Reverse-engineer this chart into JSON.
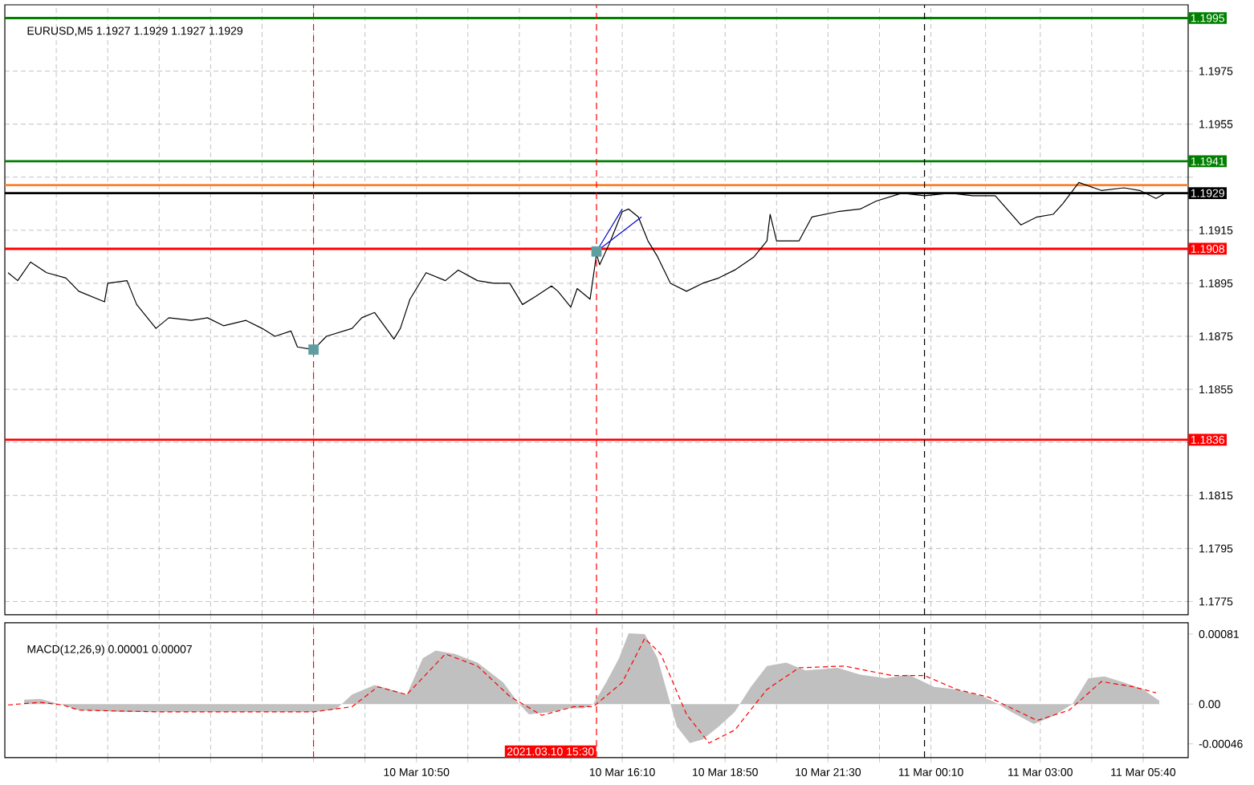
{
  "chart_data": [
    {
      "type": "line",
      "title": "EURUSD,M5  1.1927 1.1929 1.1927 1.1929",
      "series": [
        {
          "color": "#000000",
          "x": [
            "2021-03-10T00:15",
            "2021-03-10T00:30",
            "2021-03-10T00:50",
            "2021-03-10T01:15",
            "2021-03-10T01:45",
            "2021-03-10T02:05",
            "2021-03-10T02:45",
            "2021-03-10T02:50",
            "2021-03-10T03:20",
            "2021-03-10T03:35",
            "2021-03-10T04:05",
            "2021-03-10T04:25",
            "2021-03-10T05:00",
            "2021-03-10T05:25",
            "2021-03-10T05:50",
            "2021-03-10T06:25",
            "2021-03-10T06:50",
            "2021-03-10T07:10",
            "2021-03-10T07:35",
            "2021-03-10T07:45",
            "2021-03-10T08:10",
            "2021-03-10T08:30",
            "2021-03-10T09:10",
            "2021-03-10T09:25",
            "2021-03-10T09:45",
            "2021-03-10T10:00",
            "2021-03-10T10:15",
            "2021-03-10T10:25",
            "2021-03-10T10:40",
            "2021-03-10T11:05",
            "2021-03-10T11:35",
            "2021-03-10T11:55",
            "2021-03-10T12:25",
            "2021-03-10T12:50",
            "2021-03-10T13:15",
            "2021-03-10T13:35",
            "2021-03-10T13:55",
            "2021-03-10T14:20",
            "2021-03-10T14:30",
            "2021-03-10T14:50",
            "2021-03-10T15:00",
            "2021-03-10T15:20",
            "2021-03-10T15:30",
            "2021-03-10T15:35",
            "2021-03-10T15:50",
            "2021-03-10T16:10",
            "2021-03-10T16:20",
            "2021-03-10T16:35",
            "2021-03-10T16:50",
            "2021-03-10T17:05",
            "2021-03-10T17:25",
            "2021-03-10T17:50",
            "2021-03-10T18:15",
            "2021-03-10T18:40",
            "2021-03-10T19:05",
            "2021-03-10T19:35",
            "2021-03-10T19:55",
            "2021-03-10T20:00",
            "2021-03-10T20:10",
            "2021-03-10T20:45",
            "2021-03-10T21:05",
            "2021-03-10T21:45",
            "2021-03-10T22:20",
            "2021-03-10T22:45",
            "2021-03-10T23:25",
            "2021-03-11T00:00",
            "2021-03-11T00:40",
            "2021-03-11T01:15",
            "2021-03-11T01:50",
            "2021-03-11T02:30",
            "2021-03-11T02:55",
            "2021-03-11T03:20",
            "2021-03-11T03:35",
            "2021-03-11T04:00",
            "2021-03-11T04:35",
            "2021-03-11T05:10",
            "2021-03-11T05:35",
            "2021-03-11T06:00",
            "2021-03-11T06:15"
          ],
          "values": [
            1.1899,
            1.1896,
            1.1903,
            1.1899,
            1.1897,
            1.1892,
            1.1888,
            1.1895,
            1.1896,
            1.1887,
            1.1878,
            1.1882,
            1.1881,
            1.1882,
            1.1879,
            1.1881,
            1.1878,
            1.1875,
            1.1877,
            1.1871,
            1.187,
            1.1875,
            1.1878,
            1.1882,
            1.1884,
            1.1879,
            1.1874,
            1.1878,
            1.1889,
            1.1899,
            1.1896,
            1.19,
            1.1896,
            1.1895,
            1.1895,
            1.1887,
            1.189,
            1.1894,
            1.1892,
            1.1886,
            1.1893,
            1.1889,
            1.1906,
            1.1902,
            1.191,
            1.1922,
            1.1923,
            1.192,
            1.1911,
            1.1905,
            1.1895,
            1.1892,
            1.1895,
            1.1897,
            1.19,
            1.1905,
            1.1911,
            1.1921,
            1.1911,
            1.1911,
            1.192,
            1.1922,
            1.1923,
            1.1926,
            1.1929,
            1.1928,
            1.1929,
            1.1928,
            1.1928,
            1.1917,
            1.192,
            1.1921,
            1.1925,
            1.1933,
            1.193,
            1.1931,
            1.193,
            1.1927,
            1.1929
          ]
        },
        {
          "type": "scatter",
          "marker": "square",
          "color": "#5f9ea0",
          "x": [
            "2021-03-10T08:10",
            "2021-03-10T15:30"
          ],
          "values": [
            1.187,
            1.1907
          ]
        },
        {
          "color": "#0000cc",
          "x": [
            "2021-03-10T15:30",
            "2021-03-10T16:10"
          ],
          "values": [
            1.1907,
            1.1923
          ]
        },
        {
          "color": "#0000cc",
          "x": [
            "2021-03-10T15:30",
            "2021-03-10T16:40"
          ],
          "values": [
            1.1907,
            1.192
          ]
        }
      ],
      "xlim": [
        "2021-03-10T00:10",
        "2021-03-11T06:50"
      ],
      "ylim": [
        1.177,
        1.2
      ],
      "xticks": [
        {
          "value": "2021-03-10T01:30",
          "label": null
        },
        {
          "value": "2021-03-10T02:50",
          "label": null
        },
        {
          "value": "2021-03-10T04:10",
          "label": null
        },
        {
          "value": "2021-03-10T05:30",
          "label": null
        },
        {
          "value": "2021-03-10T06:50",
          "label": null
        },
        {
          "value": "2021-03-10T08:10",
          "label": null
        },
        {
          "value": "2021-03-10T09:30",
          "label": null
        },
        {
          "value": "2021-03-10T10:50",
          "label": null
        },
        {
          "value": "2021-03-10T12:10",
          "label": null
        },
        {
          "value": "2021-03-10T13:30",
          "label": null
        },
        {
          "value": "2021-03-10T14:50",
          "label": null
        },
        {
          "value": "2021-03-10T16:10",
          "label": null
        },
        {
          "value": "2021-03-10T17:30",
          "label": null
        },
        {
          "value": "2021-03-10T18:50",
          "label": null
        },
        {
          "value": "2021-03-10T20:10",
          "label": null
        },
        {
          "value": "2021-03-10T21:30",
          "label": null
        },
        {
          "value": "2021-03-10T22:50",
          "label": null
        },
        {
          "value": "2021-03-11T00:10",
          "label": null
        },
        {
          "value": "2021-03-11T01:35",
          "label": null
        },
        {
          "value": "2021-03-11T03:00",
          "label": null
        },
        {
          "value": "2021-03-11T04:20",
          "label": null
        },
        {
          "value": "2021-03-11T05:40",
          "label": null
        }
      ],
      "yticks": [
        1.1775,
        1.1795,
        1.1815,
        {
          "value": 1.1835,
          "label": null
        },
        1.1855,
        1.1875,
        1.1895,
        1.1915,
        {
          "value": 1.1935,
          "label": null
        },
        1.1955,
        1.1975,
        {
          "value": 1.1995,
          "label": null
        }
      ],
      "tick_labels": "y",
      "grid": true,
      "ref_lines": [
        {
          "axis": "y",
          "value": 1.1995,
          "label": "1.1995",
          "color": "#008000",
          "line_style": "solid"
        },
        {
          "axis": "y",
          "value": 1.1941,
          "label": "1.1941",
          "color": "#008000",
          "line_style": "solid"
        },
        {
          "axis": "y",
          "value": 1.1932,
          "label": null,
          "color": "#ff7f27",
          "line_style": "solid"
        },
        {
          "axis": "y",
          "value": 1.1929,
          "label": "1.1929",
          "color": "#000000",
          "line_style": "solid"
        },
        {
          "axis": "y",
          "value": 1.1908,
          "label": "1.1908",
          "color": "#ff0000",
          "line_style": "solid"
        },
        {
          "axis": "y",
          "value": 1.1836,
          "label": "1.1836",
          "color": "#ff0000",
          "line_style": "solid"
        },
        {
          "axis": "x",
          "value": "2021-03-10T08:10",
          "label": null,
          "color": "#ff0000",
          "line_style": "dashed"
        },
        {
          "axis": "x",
          "value": "2021-03-10T15:30",
          "label": null,
          "color": "#ff0000",
          "line_style": "dashed"
        },
        {
          "axis": "x",
          "value": "2021-03-11T00:00",
          "label": null,
          "color": "#000000",
          "line_style": "dashed"
        }
      ]
    },
    {
      "type": "area",
      "title": "MACD(12,26,9) 0.00001 0.00007",
      "series": [
        {
          "color": "#c0c0c0",
          "x": [
            "2021-03-10T00:40",
            "2021-03-10T01:05",
            "2021-03-10T01:40",
            "2021-03-10T02:05",
            "2021-03-10T03:10",
            "2021-03-10T04:10",
            "2021-03-10T05:15",
            "2021-03-10T06:15",
            "2021-03-10T07:15",
            "2021-03-10T08:10",
            "2021-03-10T08:45",
            "2021-03-10T09:10",
            "2021-03-10T09:45",
            "2021-03-10T10:10",
            "2021-03-10T10:35",
            "2021-03-10T11:00",
            "2021-03-10T11:20",
            "2021-03-10T11:50",
            "2021-03-10T12:25",
            "2021-03-10T13:05",
            "2021-03-10T13:30",
            "2021-03-10T13:45",
            "2021-03-10T14:20",
            "2021-03-10T14:45",
            "2021-03-10T15:10",
            "2021-03-10T15:25",
            "2021-03-10T15:45",
            "2021-03-10T16:05",
            "2021-03-10T16:20",
            "2021-03-10T16:45",
            "2021-03-10T17:05",
            "2021-03-10T17:25",
            "2021-03-10T17:35",
            "2021-03-10T17:55",
            "2021-03-10T18:15",
            "2021-03-10T18:40",
            "2021-03-10T19:05",
            "2021-03-10T19:30",
            "2021-03-10T19:55",
            "2021-03-10T20:25",
            "2021-03-10T20:55",
            "2021-03-10T21:45",
            "2021-03-10T22:20",
            "2021-03-10T23:00",
            "2021-03-10T23:35",
            "2021-03-11T00:15",
            "2021-03-11T00:50",
            "2021-03-11T01:30",
            "2021-03-11T01:55",
            "2021-03-11T02:15",
            "2021-03-11T02:50",
            "2021-03-11T03:20",
            "2021-03-11T03:50",
            "2021-03-11T04:15",
            "2021-03-11T04:40",
            "2021-03-11T05:10",
            "2021-03-11T05:40",
            "2021-03-11T06:05"
          ],
          "values": [
            5e-05,
            6e-05,
            -1e-05,
            -7e-05,
            -9e-05,
            -9e-05,
            -9e-05,
            -9e-05,
            -9e-05,
            -9e-05,
            -6e-05,
            0.00011,
            0.00022,
            0.00017,
            0.00011,
            0.00053,
            0.00062,
            0.00058,
            0.00048,
            0.00025,
            0,
            -0.00012,
            -9e-05,
            -5e-05,
            -5e-05,
            0,
            0.00025,
            0.00053,
            0.00082,
            0.00081,
            0.00053,
            0,
            -0.00026,
            -0.00045,
            -0.00041,
            -0.00026,
            -9e-05,
            0.0002,
            0.00044,
            0.00048,
            0.00039,
            0.00042,
            0.00034,
            0.0003,
            0.00034,
            0.0002,
            0.00017,
            9e-05,
            0,
            -9e-05,
            -0.00023,
            -0.00014,
            0,
            0.0003,
            0.00032,
            0.00025,
            0.00017,
            4e-05
          ]
        },
        {
          "type": "line",
          "color": "#ff0000",
          "line_style": "dashed",
          "x": [
            "2021-03-10T00:15",
            "2021-03-10T01:05",
            "2021-03-10T01:40",
            "2021-03-10T02:05",
            "2021-03-10T04:10",
            "2021-03-10T08:10",
            "2021-03-10T09:10",
            "2021-03-10T09:50",
            "2021-03-10T10:35",
            "2021-03-10T11:35",
            "2021-03-10T12:25",
            "2021-03-10T13:15",
            "2021-03-10T14:05",
            "2021-03-10T14:55",
            "2021-03-10T15:25",
            "2021-03-10T16:10",
            "2021-03-10T16:45",
            "2021-03-10T17:10",
            "2021-03-10T17:50",
            "2021-03-10T18:25",
            "2021-03-10T19:05",
            "2021-03-10T19:55",
            "2021-03-10T20:45",
            "2021-03-10T21:55",
            "2021-03-10T23:10",
            "2021-03-11T00:00",
            "2021-03-11T00:50",
            "2021-03-11T01:40",
            "2021-03-11T02:55",
            "2021-03-11T03:45",
            "2021-03-11T04:35",
            "2021-03-11T05:25",
            "2021-03-11T06:00"
          ],
          "values": [
            -1e-05,
            2e-05,
            -1e-05,
            -7e-05,
            -9e-05,
            -9e-05,
            -3e-05,
            0.0002,
            0.00011,
            0.00058,
            0.00044,
            9e-05,
            -0.00013,
            -3e-05,
            -3e-05,
            0.00025,
            0.00076,
            0.00058,
            -0.00012,
            -0.00045,
            -0.0003,
            0.00017,
            0.00042,
            0.00044,
            0.00033,
            0.00033,
            0.00017,
            8e-05,
            -0.00019,
            -7e-05,
            0.00026,
            0.0002,
            0.00013
          ]
        }
      ],
      "xlim": [
        "2021-03-10T00:10",
        "2021-03-11T06:50"
      ],
      "ylim": [
        -0.00062,
        0.00094
      ],
      "xticks": [
        {
          "value": "2021-03-10T01:30",
          "label": null
        },
        {
          "value": "2021-03-10T02:50",
          "label": null
        },
        {
          "value": "2021-03-10T04:10",
          "label": null
        },
        {
          "value": "2021-03-10T05:30",
          "label": null
        },
        {
          "value": "2021-03-10T06:50",
          "label": null
        },
        {
          "value": "2021-03-10T08:10",
          "label": null
        },
        {
          "value": "2021-03-10T09:30",
          "label": null
        },
        {
          "value": "2021-03-10T10:50",
          "label": "10 Mar 10:50"
        },
        {
          "value": "2021-03-10T12:10",
          "label": null
        },
        {
          "value": "2021-03-10T13:30",
          "label": null
        },
        {
          "value": "2021-03-10T14:50",
          "label": null
        },
        {
          "value": "2021-03-10T16:10",
          "label": "10 Mar 16:10"
        },
        {
          "value": "2021-03-10T17:30",
          "label": null
        },
        {
          "value": "2021-03-10T18:50",
          "label": "10 Mar 18:50"
        },
        {
          "value": "2021-03-10T20:10",
          "label": null
        },
        {
          "value": "2021-03-10T21:30",
          "label": "10 Mar 21:30"
        },
        {
          "value": "2021-03-10T22:50",
          "label": null
        },
        {
          "value": "2021-03-11T00:10",
          "label": "11 Mar 00:10"
        },
        {
          "value": "2021-03-11T01:35",
          "label": null
        },
        {
          "value": "2021-03-11T03:00",
          "label": "11 Mar 03:00"
        },
        {
          "value": "2021-03-11T04:20",
          "label": null
        },
        {
          "value": "2021-03-11T05:40",
          "label": "11 Mar 05:40"
        }
      ],
      "yticks": [
        {
          "value": -0.00046,
          "label": "-0.00046"
        },
        {
          "value": 0,
          "label": "0.00"
        },
        {
          "value": 0.00081,
          "label": "0.00081"
        }
      ],
      "grid": "x",
      "ref_lines": [
        {
          "axis": "x",
          "value": "2021-03-10T08:10",
          "label": null,
          "color": "#ff0000",
          "line_style": "dashed"
        },
        {
          "axis": "x",
          "value": "2021-03-10T15:30",
          "label": "2021.03.10 15:30",
          "color": "#ff0000",
          "line_style": "dashed"
        },
        {
          "axis": "x",
          "value": "2021-03-11T00:00",
          "label": null,
          "color": "#000000",
          "line_style": "dashed"
        }
      ]
    }
  ]
}
